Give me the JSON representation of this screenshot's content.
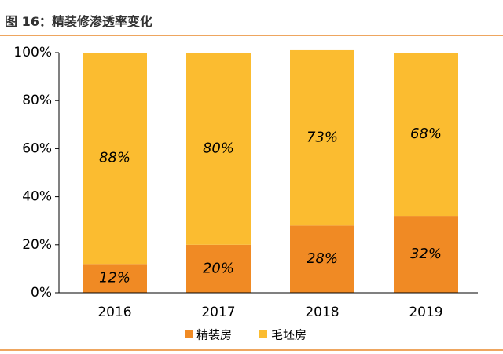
{
  "chart_data": {
    "type": "stacked-bar",
    "title": "图 16：精装修渗透率变化",
    "categories": [
      "2016",
      "2017",
      "2018",
      "2019"
    ],
    "series": [
      {
        "name": "精装房",
        "color": "#f08a24",
        "values": [
          12,
          20,
          28,
          32
        ],
        "value_labels": [
          "12%",
          "20%",
          "28%",
          "32%"
        ]
      },
      {
        "name": "毛坯房",
        "color": "#fbbc30",
        "values": [
          88,
          80,
          73,
          68
        ],
        "value_labels": [
          "88%",
          "80%",
          "73%",
          "68%"
        ]
      }
    ],
    "ylim": [
      0,
      100
    ],
    "yticks": [
      {
        "value": 0,
        "label": "0%"
      },
      {
        "value": 20,
        "label": "20%"
      },
      {
        "value": 40,
        "label": "40%"
      },
      {
        "value": 60,
        "label": "60%"
      },
      {
        "value": 80,
        "label": "80%"
      },
      {
        "value": 100,
        "label": "100%"
      }
    ],
    "legend": "bottom"
  }
}
